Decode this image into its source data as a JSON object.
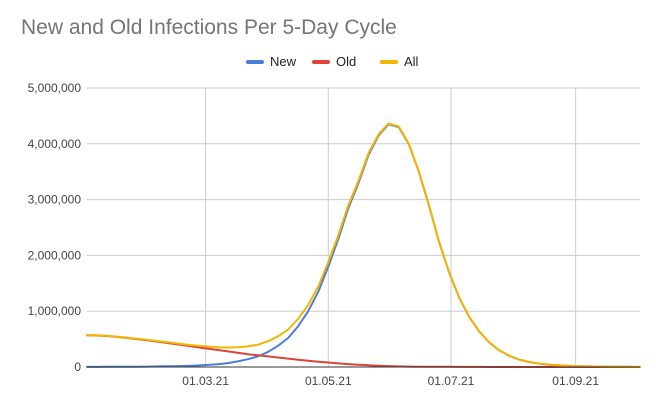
{
  "chart_data": {
    "type": "line",
    "title": "New and Old Infections Per 5-Day Cycle",
    "xlabel": "",
    "ylabel": "",
    "x_ticks": [
      {
        "label": "01.03.21",
        "day": 59
      },
      {
        "label": "01.05.21",
        "day": 120
      },
      {
        "label": "01.07.21",
        "day": 181
      },
      {
        "label": "01.09.21",
        "day": 243
      }
    ],
    "y_ticks": [
      "0",
      "1,000,000",
      "2,000,000",
      "3,000,000",
      "4,000,000",
      "5,000,000"
    ],
    "ylim": [
      0,
      5000000
    ],
    "xlim_day": [
      0,
      275
    ],
    "grid": true,
    "legend_position": "top",
    "days": [
      0,
      5,
      10,
      15,
      20,
      25,
      30,
      35,
      40,
      45,
      50,
      55,
      60,
      65,
      70,
      75,
      80,
      85,
      90,
      95,
      100,
      105,
      110,
      115,
      120,
      125,
      130,
      135,
      140,
      145,
      150,
      155,
      160,
      165,
      170,
      175,
      180,
      185,
      190,
      195,
      200,
      205,
      210,
      215,
      220,
      225,
      230,
      235,
      240,
      245,
      250,
      255,
      260,
      265,
      270,
      275
    ],
    "series": [
      {
        "name": "New",
        "color": "#4a7fd8",
        "values": [
          2000,
          2500,
          3000,
          4000,
          5000,
          6000,
          8000,
          10000,
          13000,
          16000,
          20000,
          27000,
          38000,
          50000,
          70000,
          100000,
          140000,
          190000,
          270000,
          380000,
          520000,
          730000,
          1000000,
          1350000,
          1800000,
          2300000,
          2850000,
          3300000,
          3800000,
          4150000,
          4350000,
          4300000,
          4000000,
          3500000,
          2900000,
          2250000,
          1700000,
          1250000,
          900000,
          640000,
          440000,
          300000,
          200000,
          130000,
          90000,
          60000,
          40000,
          28000,
          20000,
          14000,
          10000,
          7000,
          5000,
          3500,
          2500,
          2000
        ]
      },
      {
        "name": "Old",
        "color": "#db4437",
        "values": [
          570000,
          565000,
          555000,
          540000,
          520000,
          500000,
          480000,
          455000,
          430000,
          405000,
          380000,
          355000,
          330000,
          305000,
          280000,
          255000,
          230000,
          210000,
          190000,
          170000,
          150000,
          130000,
          112000,
          95000,
          80000,
          65000,
          52000,
          40000,
          30000,
          22000,
          16000,
          11000,
          8000,
          6000,
          4500,
          3500,
          2700,
          2000,
          1500,
          1100,
          800,
          600,
          450,
          350,
          250,
          200,
          150,
          100,
          80,
          60,
          40,
          30,
          20,
          15,
          10,
          5
        ]
      },
      {
        "name": "All",
        "color": "#f4b400",
        "values": [
          572000,
          567500,
          558000,
          544000,
          525000,
          506000,
          488000,
          465000,
          443000,
          421000,
          400000,
          382000,
          368000,
          355000,
          350000,
          355000,
          370000,
          400000,
          460000,
          550000,
          670000,
          860000,
          1112000,
          1445000,
          1880000,
          2365000,
          2902000,
          3340000,
          3830000,
          4172000,
          4366000,
          4311000,
          4008000,
          3506000,
          2904500,
          2253500,
          1702700,
          1252000,
          901500,
          641100,
          440800,
          300600,
          200450,
          130350,
          90250,
          60200,
          40150,
          28100,
          20080,
          14060,
          10040,
          7030,
          5020,
          3515,
          2510,
          2005
        ]
      }
    ]
  }
}
